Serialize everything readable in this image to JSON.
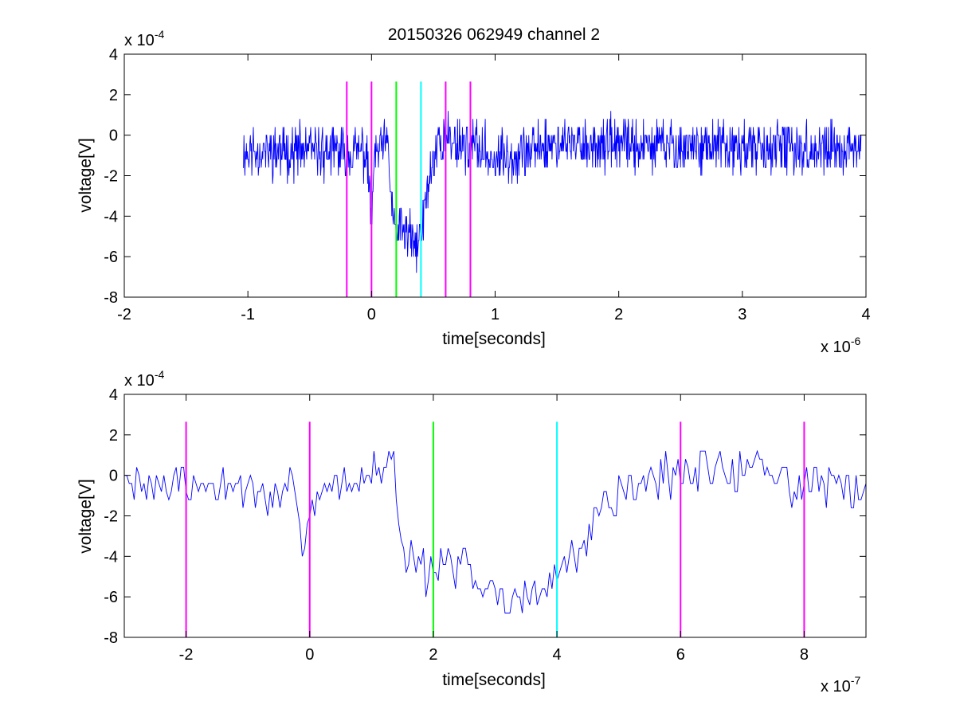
{
  "figure": {
    "title": "20150326 062949 channel 2"
  },
  "chart_data": [
    {
      "type": "line",
      "xlabel": "time[seconds]",
      "ylabel": "voltage[V]",
      "x_exponent_label": "x 10",
      "x_exponent_sup": "-6",
      "y_exponent_label": "x 10",
      "y_exponent_sup": "-4",
      "xlim": [
        -2e-06,
        4e-06
      ],
      "ylim": [
        -0.0008,
        0.0004
      ],
      "x_ticks": [
        -2e-06,
        -1e-06,
        0,
        1e-06,
        2e-06,
        3e-06,
        4e-06
      ],
      "x_tick_labels": [
        "-2",
        "-1",
        "0",
        "1",
        "2",
        "3",
        "4"
      ],
      "y_ticks": [
        -0.0008,
        -0.0006,
        -0.0004,
        -0.0002,
        0,
        0.0002,
        0.0004
      ],
      "y_tick_labels": [
        "-8",
        "-6",
        "-4",
        "-2",
        "0",
        "2",
        "4"
      ],
      "grid": false,
      "signal": {
        "color": "#0000ff",
        "x_start": -1.04e-06,
        "x_end": 3.96e-06,
        "baseline": -8e-05,
        "noise_amplitude": 0.00016,
        "quantization": 4e-05,
        "min": -0.00072,
        "max": 0.00024,
        "keypoints": [
          [
            -1.04e-06,
            -8e-05
          ],
          [
            -5e-08,
            -8e-05
          ],
          [
            -2e-08,
            -0.00025
          ],
          [
            0.0,
            -0.0004
          ],
          [
            3e-08,
            -0.0001
          ],
          [
            1.3e-07,
            -4e-05
          ],
          [
            1.6e-07,
            -0.0003
          ],
          [
            1.9e-07,
            -0.00048
          ],
          [
            3e-07,
            -0.00048
          ],
          [
            3.4e-07,
            -0.00056
          ],
          [
            4e-07,
            -0.0005
          ],
          [
            4.7e-07,
            -0.0002
          ],
          [
            5.5e-07,
            -2e-05
          ],
          [
            8e-07,
            -4e-05
          ],
          [
            1e-06,
            -0.00012
          ],
          [
            1.5e-06,
            -4e-05
          ],
          [
            3.96e-06,
            -8e-05
          ]
        ]
      },
      "markers": [
        {
          "x": -2e-07,
          "color": "#ff00ff"
        },
        {
          "x": 0,
          "color": "#ff00ff"
        },
        {
          "x": 2e-07,
          "color": "#00ff00"
        },
        {
          "x": 4e-07,
          "color": "#00ffff"
        },
        {
          "x": 6e-07,
          "color": "#ff00ff"
        },
        {
          "x": 8e-07,
          "color": "#ff00ff"
        }
      ],
      "marker_range": [
        -0.0008,
        0.000265
      ]
    },
    {
      "type": "line",
      "xlabel": "time[seconds]",
      "ylabel": "voltage[V]",
      "x_exponent_label": "x 10",
      "x_exponent_sup": "-7",
      "y_exponent_label": "x 10",
      "y_exponent_sup": "-4",
      "xlim": [
        -3e-07,
        9e-07
      ],
      "ylim": [
        -0.0008,
        0.0004
      ],
      "x_ticks": [
        -2e-07,
        0,
        2e-07,
        4e-07,
        6e-07,
        8e-07
      ],
      "x_tick_labels": [
        "-2",
        "0",
        "2",
        "4",
        "6",
        "8"
      ],
      "y_ticks": [
        -0.0008,
        -0.0006,
        -0.0004,
        -0.0002,
        0,
        0.0002,
        0.0004
      ],
      "y_tick_labels": [
        "-8",
        "-6",
        "-4",
        "-2",
        "0",
        "2",
        "4"
      ],
      "grid": false,
      "signal": {
        "color": "#0000ff",
        "x_start": -3e-07,
        "x_end": 9e-07,
        "baseline": -6e-05,
        "noise_amplitude": 0.00014,
        "quantization": 4e-05,
        "min": -0.00072,
        "max": 0.00024,
        "keypoints": [
          [
            -3e-07,
            -4e-05
          ],
          [
            -3e-08,
            -8e-05
          ],
          [
            -1e-08,
            -0.0004
          ],
          [
            1e-08,
            -0.0001
          ],
          [
            1.2e-07,
            4e-05
          ],
          [
            1.3e-07,
            0.00016
          ],
          [
            1.45e-07,
            -0.0003
          ],
          [
            1.7e-07,
            -0.00046
          ],
          [
            2e-07,
            -0.00048
          ],
          [
            2.4e-07,
            -0.00044
          ],
          [
            3e-07,
            -0.00054
          ],
          [
            3.4e-07,
            -0.0006
          ],
          [
            3.9e-07,
            -0.00056
          ],
          [
            4.2e-07,
            -0.0004
          ],
          [
            4.8e-07,
            -0.00016
          ],
          [
            5.4e-07,
            -2e-05
          ],
          [
            6.6e-07,
            4e-05
          ],
          [
            9e-07,
            -8e-05
          ]
        ]
      },
      "markers": [
        {
          "x": -2e-07,
          "color": "#ff00ff"
        },
        {
          "x": 0,
          "color": "#ff00ff"
        },
        {
          "x": 2e-07,
          "color": "#00ff00"
        },
        {
          "x": 4e-07,
          "color": "#00ffff"
        },
        {
          "x": 6e-07,
          "color": "#ff00ff"
        },
        {
          "x": 8e-07,
          "color": "#ff00ff"
        }
      ],
      "marker_range": [
        -0.0008,
        0.000265
      ]
    }
  ]
}
